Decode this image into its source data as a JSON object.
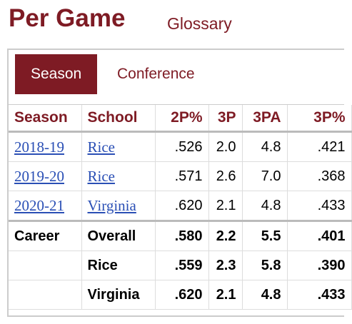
{
  "header": {
    "title": "Per Game",
    "link": "Glossary"
  },
  "tabs": [
    "Season",
    "Conference"
  ],
  "table": {
    "columns": [
      "Season",
      "School",
      "2P%",
      "3P",
      "3PA",
      "3P%"
    ],
    "rows": [
      {
        "season": "2018-19",
        "school": "Rice",
        "stats": [
          ".526",
          "2.0",
          "4.8",
          ".421"
        ]
      },
      {
        "season": "2019-20",
        "school": "Rice",
        "stats": [
          ".571",
          "2.6",
          "7.0",
          ".368"
        ]
      },
      {
        "season": "2020-21",
        "school": "Virginia",
        "stats": [
          ".620",
          "2.1",
          "4.8",
          ".433"
        ]
      },
      {
        "season": "Career",
        "school": "Overall",
        "stats": [
          ".580",
          "2.2",
          "5.5",
          ".401"
        ]
      },
      {
        "school": "Rice",
        "stats": [
          ".559",
          "2.3",
          "5.8",
          ".390"
        ]
      },
      {
        "school": "Virginia",
        "stats": [
          ".620",
          "2.1",
          "4.8",
          ".433"
        ]
      }
    ]
  }
}
